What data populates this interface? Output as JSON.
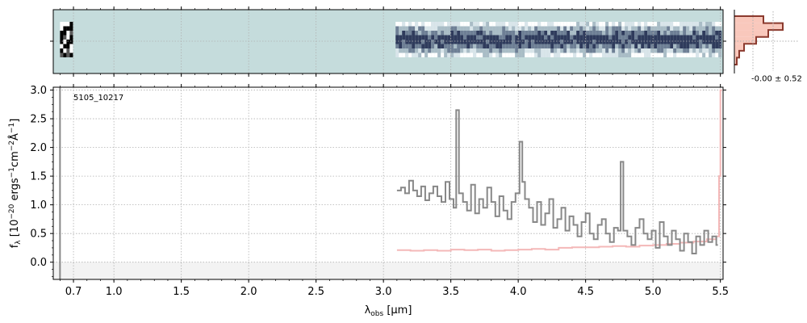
{
  "chart_data": [
    {
      "panel": "2d-spectrum",
      "type": "heatmap",
      "background_color": "#c5dcdc",
      "x_segments": [
        {
          "xmin": 0.6,
          "xmax": 0.68,
          "rows": 8
        },
        {
          "xmin": 3.09,
          "xmax": 5.5,
          "rows": 8
        }
      ]
    },
    {
      "panel": "1d-spectrum",
      "type": "line",
      "annotation": "5105_10217",
      "xlabel_parts": {
        "prefix": "λ",
        "sub": "obs",
        "suffix": " [μm]"
      },
      "ylabel_parts": {
        "a": "f",
        "a_sub": "λ",
        "b": " [10",
        "b_sup": "−20",
        "c": " ergs",
        "c_sup": "−1",
        "d": "cm",
        "d_sup": "−2",
        "e": "Å",
        "e_sup": "−1",
        "f": "]"
      },
      "xlim": [
        0.55,
        5.52
      ],
      "ylim": [
        -0.3,
        3.05
      ],
      "grid": true,
      "x_tick_values": [
        0.7,
        1.0,
        1.5,
        2.0,
        2.5,
        3.0,
        3.5,
        4.0,
        4.5,
        5.0,
        5.5
      ],
      "x_tick_labels": [
        "0.7",
        "1.0",
        "1.5",
        "2.0",
        "2.5",
        "3.0",
        "3.5",
        "4.0",
        "4.5",
        "5.0",
        "5.5"
      ],
      "y_tick_values": [
        0.0,
        0.5,
        1.0,
        1.5,
        2.0,
        2.5,
        3.0
      ],
      "y_tick_labels": [
        "0.0",
        "0.5",
        "1.0",
        "1.5",
        "2.0",
        "2.5",
        "3.0"
      ],
      "series": [
        {
          "role": "flux",
          "color": "#888888",
          "x": [
            3.1,
            3.13,
            3.16,
            3.19,
            3.22,
            3.25,
            3.28,
            3.31,
            3.34,
            3.37,
            3.4,
            3.43,
            3.46,
            3.49,
            3.52,
            3.54,
            3.56,
            3.59,
            3.62,
            3.65,
            3.68,
            3.71,
            3.74,
            3.77,
            3.8,
            3.83,
            3.86,
            3.89,
            3.92,
            3.95,
            3.98,
            4.01,
            4.03,
            4.05,
            4.08,
            4.11,
            4.14,
            4.17,
            4.2,
            4.23,
            4.26,
            4.29,
            4.32,
            4.35,
            4.38,
            4.41,
            4.44,
            4.47,
            4.5,
            4.53,
            4.56,
            4.59,
            4.62,
            4.65,
            4.68,
            4.71,
            4.74,
            4.76,
            4.78,
            4.81,
            4.84,
            4.87,
            4.9,
            4.93,
            4.96,
            4.99,
            5.02,
            5.05,
            5.08,
            5.11,
            5.14,
            5.17,
            5.2,
            5.23,
            5.26,
            5.29,
            5.32,
            5.35,
            5.38,
            5.41,
            5.44,
            5.47
          ],
          "y": [
            1.25,
            1.3,
            1.2,
            1.42,
            1.25,
            1.15,
            1.32,
            1.08,
            1.2,
            1.32,
            1.15,
            1.05,
            1.4,
            1.1,
            0.95,
            2.65,
            1.2,
            1.05,
            0.9,
            1.35,
            0.85,
            1.1,
            0.95,
            1.3,
            1.05,
            0.8,
            1.15,
            0.9,
            0.75,
            1.05,
            1.2,
            2.1,
            1.4,
            1.1,
            0.95,
            0.7,
            1.05,
            0.65,
            0.85,
            1.1,
            0.6,
            0.75,
            0.95,
            0.55,
            0.8,
            0.65,
            0.45,
            0.7,
            0.85,
            0.5,
            0.4,
            0.65,
            0.75,
            0.5,
            0.35,
            0.6,
            0.55,
            1.75,
            0.55,
            0.45,
            0.3,
            0.6,
            0.75,
            0.5,
            0.4,
            0.55,
            0.25,
            0.7,
            0.45,
            0.3,
            0.55,
            0.4,
            0.2,
            0.5,
            0.35,
            0.15,
            0.45,
            0.3,
            0.55,
            0.35,
            0.45,
            0.3
          ]
        },
        {
          "role": "error",
          "color": "#f4b8b8",
          "x": [
            3.1,
            3.2,
            3.3,
            3.4,
            3.5,
            3.6,
            3.7,
            3.8,
            3.9,
            4.0,
            4.1,
            4.2,
            4.3,
            4.4,
            4.5,
            4.6,
            4.7,
            4.8,
            4.9,
            5.0,
            5.1,
            5.2,
            5.3,
            5.4,
            5.47,
            5.49,
            5.5
          ],
          "y": [
            0.21,
            0.2,
            0.21,
            0.2,
            0.22,
            0.21,
            0.22,
            0.2,
            0.21,
            0.22,
            0.23,
            0.22,
            0.25,
            0.26,
            0.26,
            0.27,
            0.28,
            0.27,
            0.29,
            0.3,
            0.32,
            0.34,
            0.36,
            0.4,
            0.45,
            1.5,
            3.0
          ]
        }
      ]
    },
    {
      "panel": "residual-histogram",
      "type": "bar",
      "label": "-0.00 ± 0.52",
      "colors": {
        "fill": "#f9c8bc",
        "outline": "#8b3a2e"
      },
      "bins": [
        -3,
        -2,
        -1,
        0,
        1,
        2,
        3
      ],
      "counts": [
        0.6,
        1.0,
        0.7,
        0.45,
        0.2,
        0.1,
        0.05
      ]
    }
  ]
}
